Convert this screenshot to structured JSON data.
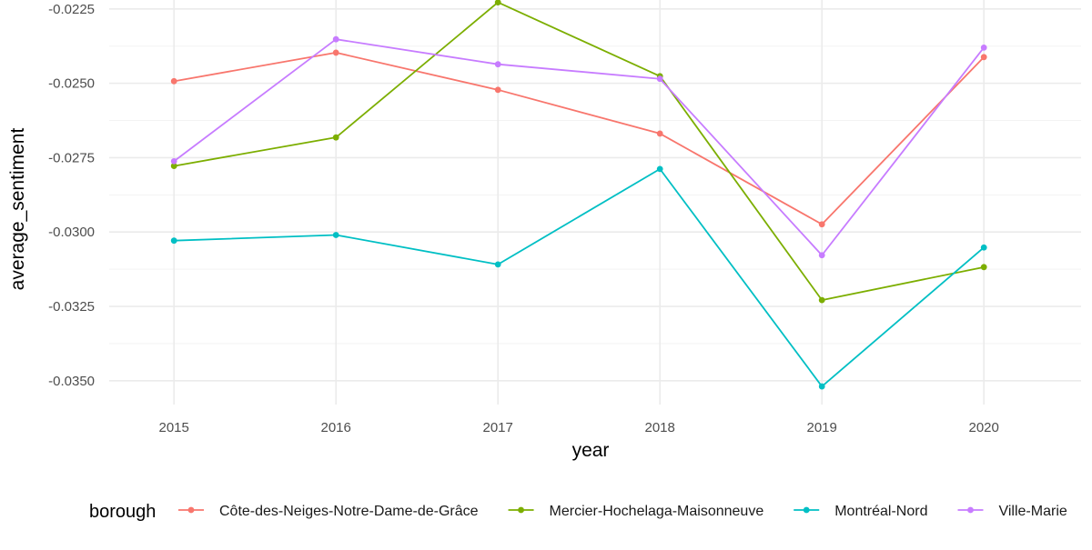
{
  "chart_data": {
    "type": "line",
    "title": "",
    "xlabel": "year",
    "ylabel": "average_sentiment",
    "x": [
      2015,
      2016,
      2017,
      2018,
      2019,
      2020
    ],
    "x_tick_labels": [
      "2015",
      "2016",
      "2017",
      "2018",
      "2019",
      "2020"
    ],
    "xlim": [
      2014.6,
      2020.6
    ],
    "ylim": [
      -0.0358,
      -0.0222
    ],
    "y_ticks": [
      -0.0225,
      -0.025,
      -0.0275,
      -0.03,
      -0.0325,
      -0.035
    ],
    "y_tick_labels": [
      "-0.0225",
      "-0.0250",
      "-0.0275",
      "-0.0300",
      "-0.0325",
      "-0.0350"
    ],
    "grid": true,
    "legend_title": "borough",
    "legend_position": "bottom",
    "series": [
      {
        "name": "Côte-des-Neiges-Notre-Dame-de-Grâce",
        "color": "#F8766D",
        "values": [
          -0.02493,
          -0.02397,
          -0.02522,
          -0.02669,
          -0.02974,
          -0.02412
        ]
      },
      {
        "name": "Mercier-Hochelaga-Maisonneuve",
        "color": "#7CAE00",
        "values": [
          -0.02778,
          -0.02682,
          -0.02228,
          -0.02476,
          -0.03229,
          -0.03118
        ]
      },
      {
        "name": "Montréal-Nord",
        "color": "#00BFC4",
        "values": [
          -0.03029,
          -0.0301,
          -0.03109,
          -0.02788,
          -0.03519,
          -0.03052
        ]
      },
      {
        "name": "Ville-Marie",
        "color": "#C77CFF",
        "values": [
          -0.02762,
          -0.02352,
          -0.02436,
          -0.02485,
          -0.03078,
          -0.0238
        ]
      }
    ]
  }
}
